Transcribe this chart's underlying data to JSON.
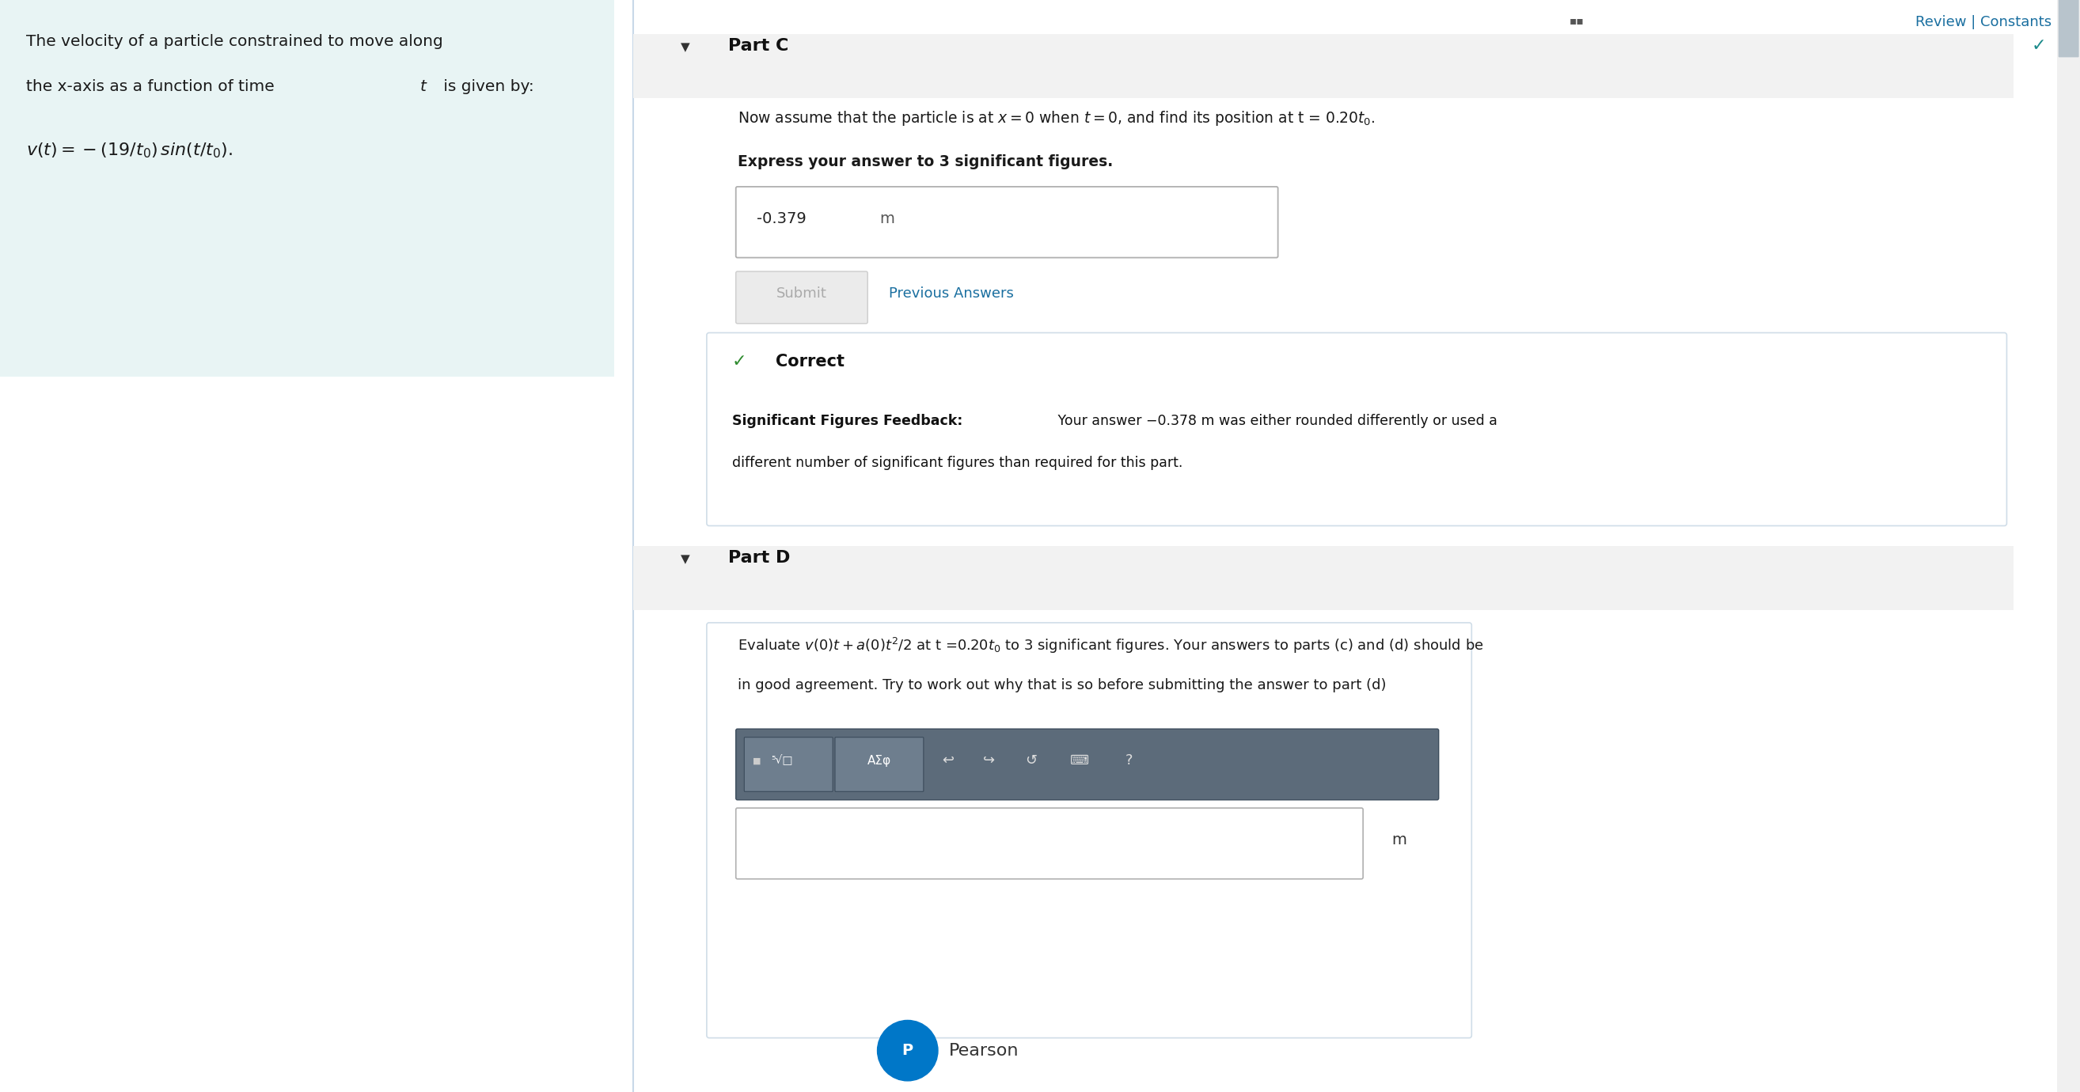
{
  "bg_color": "#ffffff",
  "left_panel_bg": "#e8f4f4",
  "review_text": "Review | Constants",
  "review_color": "#1a6fa0",
  "top_check_color": "#1a8a8a",
  "part_c_label": "Part C",
  "part_c_header_bg": "#f2f2f2",
  "part_c_text": "Now assume that the particle is at $x = 0$ when $t = 0$, and find its position at t = 0.20$t_0$.",
  "express_text": "Express your answer to 3 significant figures.",
  "answer_value": "-0.379",
  "submit_text": "Submit",
  "submit_bg": "#ebebeb",
  "submit_color": "#aaaaaa",
  "prev_answers_text": "Previous Answers",
  "prev_color": "#1a6fa0",
  "correct_label": "Correct",
  "correct_check_color": "#2e8b2e",
  "correct_box_bg": "#ffffff",
  "correct_box_border": "#d0dde8",
  "feedback_bold": "Significant Figures Feedback:",
  "feedback_rest": " Your answer −0.378 m was either rounded differently or used a",
  "feedback_line2": "different number of significant figures than required for this part.",
  "part_d_label": "Part D",
  "part_d_header_bg": "#f2f2f2",
  "part_d_line1": "Evaluate $v(0)t + a(0)t^2/2$ at t =0.20$t_0$ to 3 significant figures. Your answers to parts (c) and (d) should be",
  "part_d_line2": "in good agreement. Try to work out why that is so before submitting the answer to part (d)",
  "toolbar_bg": "#5c6b7a",
  "toolbar_btn_bg": "#6e7e8e",
  "toolbar_white": "#ffffff",
  "m_label": "m",
  "pearson_blue": "#0077c8",
  "pearson_text": "Pearson",
  "divider_color": "#c8d8e8",
  "scrollbar_bg": "#f0f0f0",
  "scrollbar_thumb": "#b8c4cc",
  "left_text1": "The velocity of a particle constrained to move along",
  "left_text2_a": "the x-axis as a function of time ",
  "left_text2_b": "t",
  "left_text2_c": " is given by:",
  "left_formula": "$v(t) = -(19/t_0)\\,sin(t/t_0).$",
  "input_border": "#b0b0b0",
  "outer_box_border": "#d0dde8"
}
